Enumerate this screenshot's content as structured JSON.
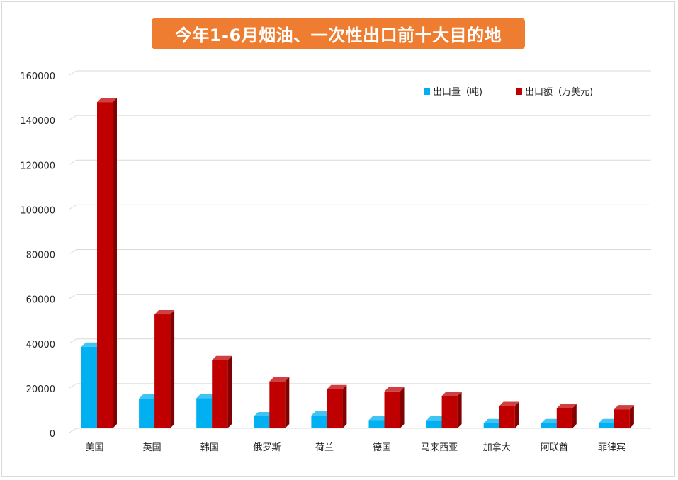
{
  "chart_data": {
    "type": "bar",
    "title": "今年1-6月烟油、一次性出口前十大目的地",
    "categories": [
      "美国",
      "英国",
      "韩国",
      "俄罗斯",
      "荷兰",
      "德国",
      "马来西亚",
      "加拿大",
      "阿联酋",
      "菲律宾"
    ],
    "series": [
      {
        "name": "出口量（吨)",
        "color": "#00b0f0",
        "values": [
          36500,
          13300,
          13500,
          5400,
          5700,
          3700,
          3500,
          2300,
          2300,
          2300
        ]
      },
      {
        "name": "出口额（万美元)",
        "color": "#c00000",
        "values": [
          146000,
          51000,
          30500,
          21000,
          17500,
          16500,
          14500,
          10000,
          9000,
          8500
        ]
      }
    ],
    "ylim": [
      0,
      160000
    ],
    "yticks": [
      "0",
      "20000",
      "40000",
      "60000",
      "80000",
      "100000",
      "120000",
      "140000",
      "160000"
    ],
    "grid": true,
    "legend_position": "top-right"
  }
}
